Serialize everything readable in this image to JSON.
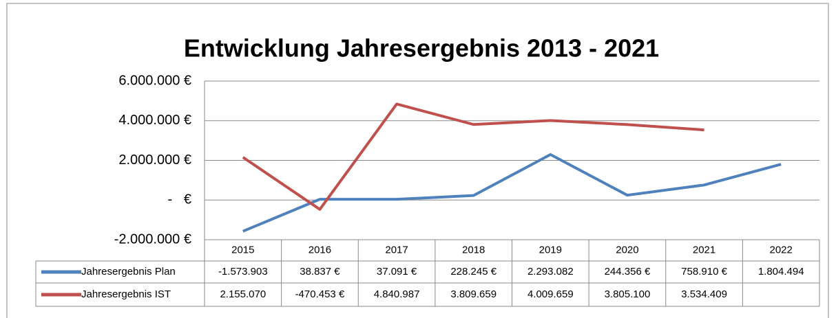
{
  "chart_data": {
    "type": "line",
    "title": "Entwicklung Jahresergebnis 2013 - 2021",
    "categories": [
      "2015",
      "2016",
      "2017",
      "2018",
      "2019",
      "2020",
      "2021",
      "2022"
    ],
    "series": [
      {
        "name": "Jahresergebnis Plan",
        "color": "#4f81bd",
        "values": [
          -1573903,
          38837,
          37091,
          228245,
          2293082,
          244356,
          758910,
          1804494
        ],
        "value_labels": [
          "-1.573.903",
          "38.837 €",
          "37.091 €",
          "228.245 €",
          "2.293.082",
          "244.356 €",
          "758.910 €",
          "1.804.494"
        ]
      },
      {
        "name": "Jahresergebnis IST",
        "color": "#c0504d",
        "values": [
          2155070,
          -470453,
          4840987,
          3809659,
          4009659,
          3805100,
          3534409,
          null
        ],
        "value_labels": [
          "2.155.070",
          "-470.453 €",
          "4.840.987",
          "3.809.659",
          "4.009.659",
          "3.805.100",
          "3.534.409",
          null
        ]
      }
    ],
    "ylim": [
      -2000000,
      6000000
    ],
    "yticks": [
      {
        "value": -2000000,
        "label": "-2.000.000 €"
      },
      {
        "value": 0,
        "label": "-   €"
      },
      {
        "value": 2000000,
        "label": "2.000.000 €"
      },
      {
        "value": 4000000,
        "label": "4.000.000 €"
      },
      {
        "value": 6000000,
        "label": "6.000.000 €"
      }
    ],
    "grid": true
  }
}
